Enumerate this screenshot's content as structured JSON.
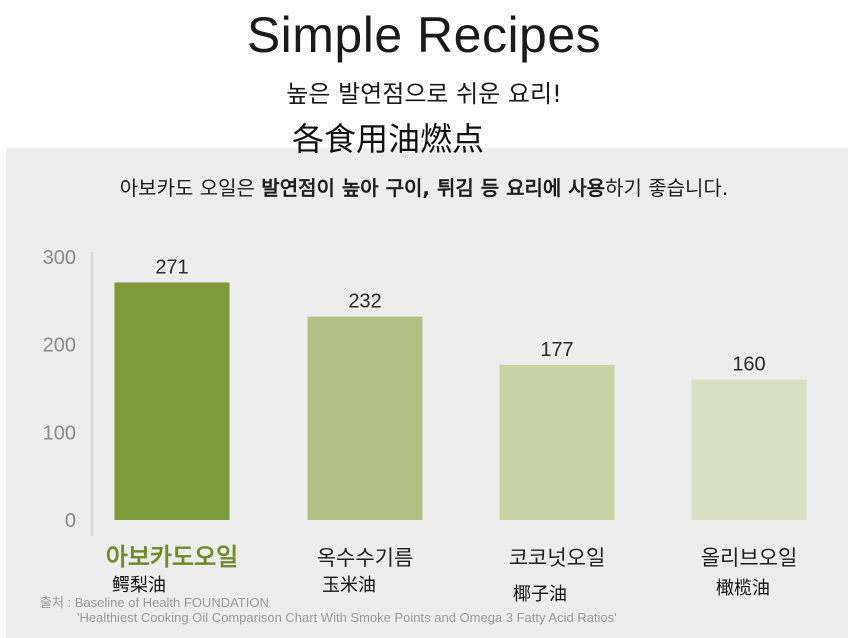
{
  "title": "Simple Recipes",
  "subtitle": "높은 발연점으로 쉬운 요리!",
  "overlay_title": "各食用油燃点",
  "headline": {
    "part1": "아보카도 오일은 ",
    "bold1": "발연점이 높아 구이, 튀김 등 요리에 사용",
    "part2": "하기 좋습니다."
  },
  "source": {
    "line1": "출처 : Baseline of Health FOUNDATION",
    "line2": "'Healthiest Cooking Oil Comparison Chart With Smoke Points and Omega 3 Fatty Acid Ratios'"
  },
  "chinese_labels": [
    "鳄梨油",
    "玉米油",
    "椰子油",
    "橄榄油"
  ],
  "colors": {
    "bar1": "#7e9a3a",
    "bar2": "#b0c184",
    "bar3": "#c8d3a6",
    "bar4": "#d9dfc2",
    "highlight_label": "#6f8c2e",
    "panel": "#ededed"
  },
  "chart_data": {
    "type": "bar",
    "categories": [
      "아보카도오일",
      "옥수수기름",
      "코코넛오일",
      "올리브오일"
    ],
    "values": [
      271,
      232,
      177,
      160
    ],
    "yticks": [
      0,
      100,
      200,
      300
    ],
    "ylim": [
      0,
      300
    ],
    "grid": false,
    "data_labels": [
      "271",
      "232",
      "177",
      "160"
    ]
  }
}
